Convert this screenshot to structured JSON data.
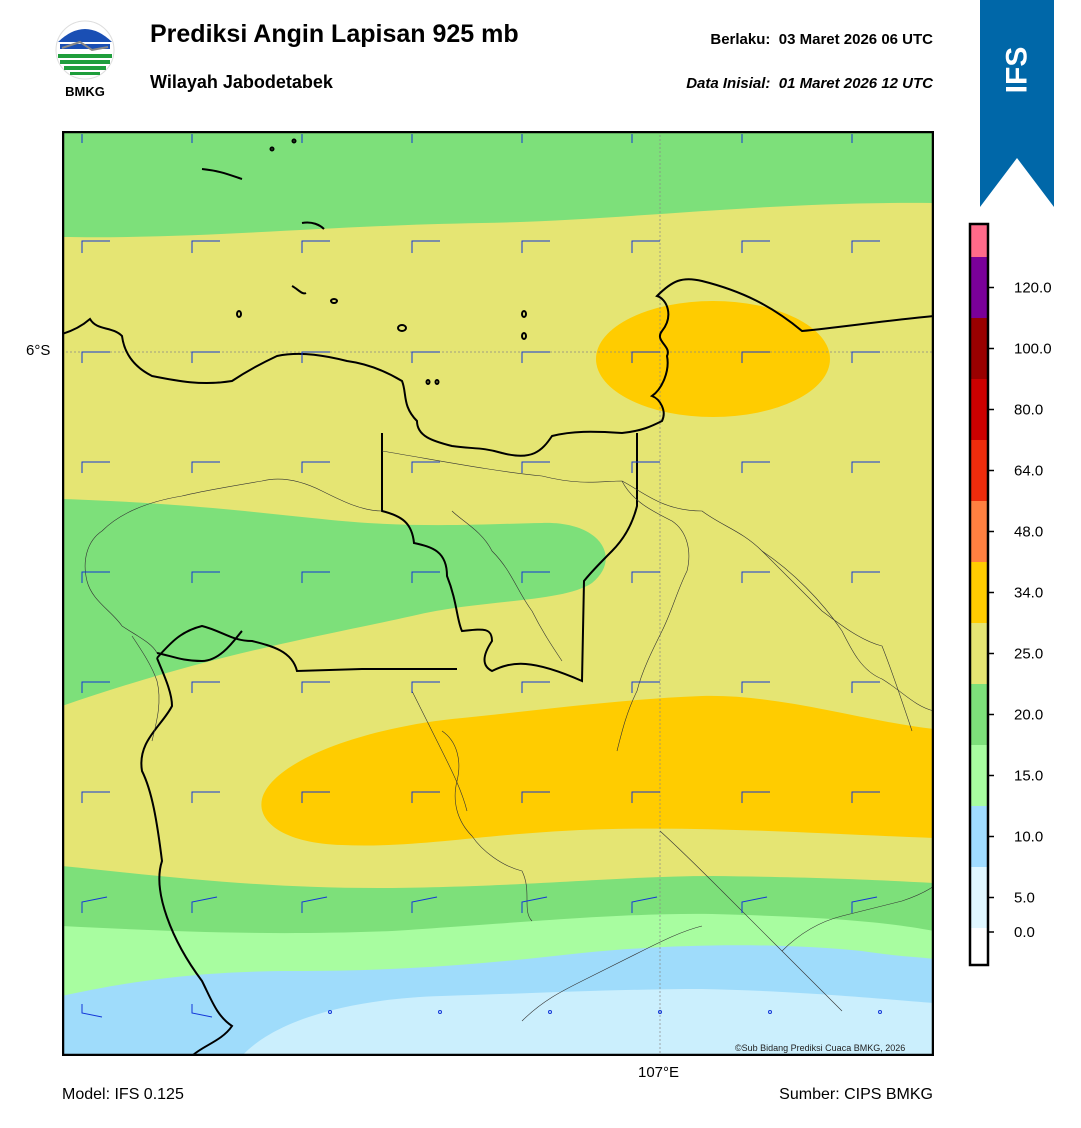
{
  "header": {
    "logo_text": "BMKG",
    "title": "Prediksi Angin Lapisan 925 mb",
    "subtitle": "Wilayah Jabodetabek",
    "valid_label": "Berlaku:",
    "valid_time": "03 Maret 2026 06 UTC",
    "init_label": "Data Inisial:",
    "init_time": "01 Maret 2026 12 UTC",
    "model_badge": "IFS"
  },
  "map": {
    "lat_label": "6°S",
    "lon_label": "107°E",
    "credit": "©Sub Bidang Prediksi Cuaca BMKG, 2026",
    "unit_note": "wind speed contours"
  },
  "colorbar": {
    "labels": [
      "0.0",
      "5.0",
      "10.0",
      "15.0",
      "20.0",
      "25.0",
      "34.0",
      "48.0",
      "64.0",
      "80.0",
      "100.0",
      "120.0"
    ],
    "colors": [
      "#ffffff",
      "#e0f7ff",
      "#a0dcff",
      "#a8fda0",
      "#7de07a",
      "#e5e573",
      "#ffcc00",
      "#ff8040",
      "#ee2c0c",
      "#cc0000",
      "#990000",
      "#7a0099",
      "#ff6a8a"
    ],
    "zone_colors": {
      "green_dark": "#7de07a",
      "green_light": "#a8fda0",
      "yellow": "#e5e573",
      "orange": "#ffcc00",
      "blue": "#9fdcfb",
      "blue_light": "#cbeffd"
    }
  },
  "footer": {
    "model": "Model: IFS 0.125",
    "source": "Sumber: CIPS BMKG"
  }
}
